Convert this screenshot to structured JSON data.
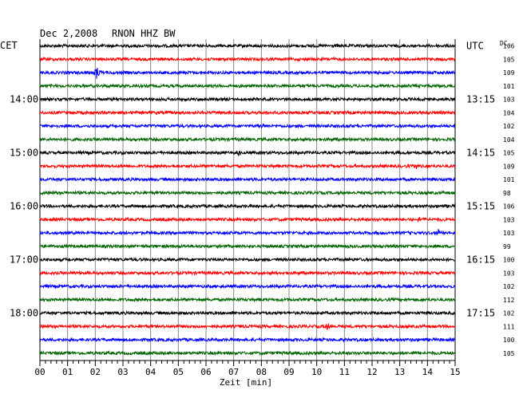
{
  "header": {
    "date": "Dec 2,2008",
    "station": "RNON HHZ BW",
    "left_zone": "CET",
    "right_zone": "UTC",
    "dc_label": "DC"
  },
  "chart_data": {
    "type": "line",
    "title": "",
    "xlabel": "Zeit [min]",
    "ylabel": "",
    "x_ticks": [
      "00",
      "01",
      "02",
      "03",
      "04",
      "05",
      "06",
      "07",
      "08",
      "09",
      "10",
      "11",
      "12",
      "13",
      "14",
      "15"
    ],
    "xlim": [
      0,
      15
    ],
    "trace_colors": [
      "#000000",
      "#ff0000",
      "#0000ff",
      "#006400"
    ],
    "rows_per_hour": 4,
    "left_hour_labels": [
      {
        "row": 4,
        "label": "14:00"
      },
      {
        "row": 8,
        "label": "15:00"
      },
      {
        "row": 12,
        "label": "16:00"
      },
      {
        "row": 16,
        "label": "17:00"
      },
      {
        "row": 20,
        "label": "18:00"
      }
    ],
    "right_hour_labels": [
      {
        "row": 0,
        "label": "UTC"
      },
      {
        "row": 4,
        "label": "13:15"
      },
      {
        "row": 8,
        "label": "14:15"
      },
      {
        "row": 12,
        "label": "15:15"
      },
      {
        "row": 16,
        "label": "16:15"
      },
      {
        "row": 20,
        "label": "17:15"
      }
    ],
    "dc_values": [
      "106",
      "105",
      "109",
      "101",
      "103",
      "104",
      "102",
      "104",
      "105",
      "109",
      "101",
      "98",
      "106",
      "103",
      "103",
      "99",
      "100",
      "103",
      "102",
      "112",
      "102",
      "111",
      "100",
      "105"
    ],
    "events": [
      {
        "row": 2,
        "minute": 2.05,
        "amplitude": 1.0
      },
      {
        "row": 9,
        "minute": 13.6,
        "amplitude": 0.35
      },
      {
        "row": 8,
        "minute": 7.2,
        "amplitude": 0.4
      },
      {
        "row": 14,
        "minute": 14.4,
        "amplitude": 0.5
      },
      {
        "row": 13,
        "minute": 13.7,
        "amplitude": 0.35
      },
      {
        "row": 21,
        "minute": 10.4,
        "amplitude": 0.45
      },
      {
        "row": 6,
        "minute": 8.0,
        "amplitude": 0.3
      }
    ]
  }
}
